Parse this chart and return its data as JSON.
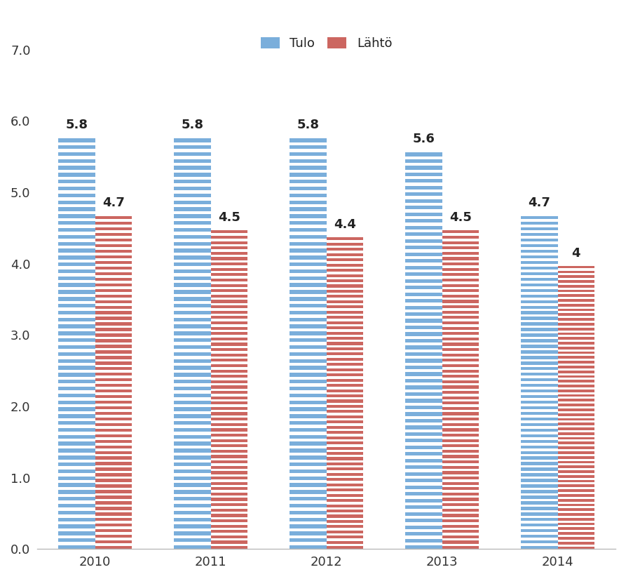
{
  "years": [
    "2010",
    "2011",
    "2012",
    "2013",
    "2014"
  ],
  "tulo_values": [
    5.8,
    5.8,
    5.8,
    5.6,
    4.7
  ],
  "lahto_values": [
    4.7,
    4.5,
    4.4,
    4.5,
    4.0
  ],
  "tulo_label": "Tulo",
  "lahto_label": "Lähtö",
  "tulo_color": "#7aaedb",
  "lahto_color": "#cc6660",
  "ylim": [
    0.0,
    7.0
  ],
  "yticks": [
    0.0,
    1.0,
    2.0,
    3.0,
    4.0,
    5.0,
    6.0,
    7.0
  ],
  "bar_width": 0.32,
  "tick_fontsize": 13,
  "legend_fontsize": 13,
  "value_fontsize": 13,
  "background_color": "#ffffff",
  "stripe_count": 60,
  "stripe_ratio": 0.55
}
